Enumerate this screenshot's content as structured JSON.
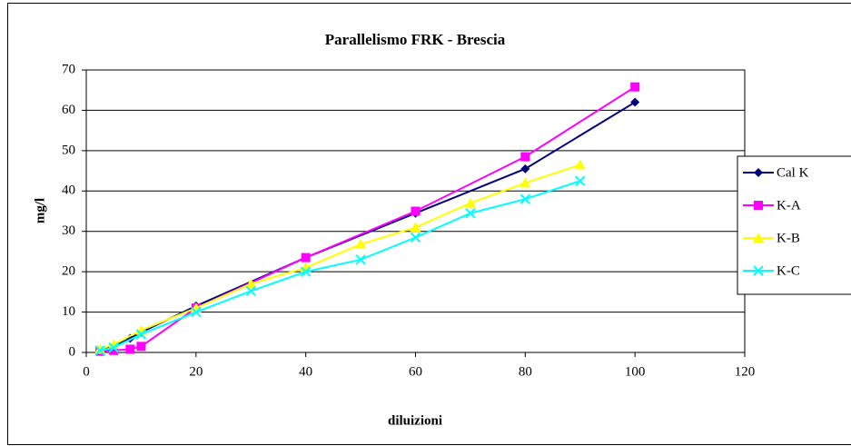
{
  "chart_data": {
    "type": "line",
    "title": "Parallelismo FRK - Brescia",
    "x_label": "diluizioni",
    "y_label": "mg/l",
    "xlim": [
      0,
      120
    ],
    "xticks": [
      0,
      20,
      40,
      60,
      80,
      100,
      120
    ],
    "ylim": [
      0,
      70
    ],
    "yticks": [
      0,
      10,
      20,
      30,
      40,
      50,
      60,
      70
    ],
    "grid": true,
    "legend": "right",
    "series": [
      {
        "name": "Cal K",
        "color": "#000080",
        "marker": "diamond",
        "x": [
          2.5,
          5,
          8,
          10,
          20,
          40,
          60,
          80,
          100
        ],
        "values": [
          0.5,
          1.5,
          3.5,
          5,
          11.5,
          23.5,
          34.5,
          45.5,
          62
        ]
      },
      {
        "name": "K-A",
        "color": "#ff00ff",
        "marker": "square",
        "x": [
          2.5,
          5,
          8,
          10,
          20,
          40,
          60,
          80,
          100
        ],
        "values": [
          0.3,
          0.5,
          0.8,
          1.5,
          11,
          23.5,
          35,
          48.5,
          65.8
        ]
      },
      {
        "name": "K-B",
        "color": "#ffff00",
        "marker": "triangle",
        "x": [
          2.5,
          5,
          10,
          20,
          30,
          40,
          50,
          60,
          70,
          80,
          90
        ],
        "values": [
          0.8,
          2,
          5.5,
          11,
          17,
          21,
          26.8,
          31,
          37,
          42,
          46.5
        ]
      },
      {
        "name": "K-C",
        "color": "#00ffff",
        "marker": "x",
        "x": [
          2.5,
          5,
          10,
          20,
          30,
          40,
          50,
          60,
          70,
          80,
          90
        ],
        "values": [
          0.5,
          1.2,
          4.5,
          10,
          15.2,
          20,
          23,
          28.5,
          34.5,
          38,
          42.5
        ]
      }
    ]
  }
}
